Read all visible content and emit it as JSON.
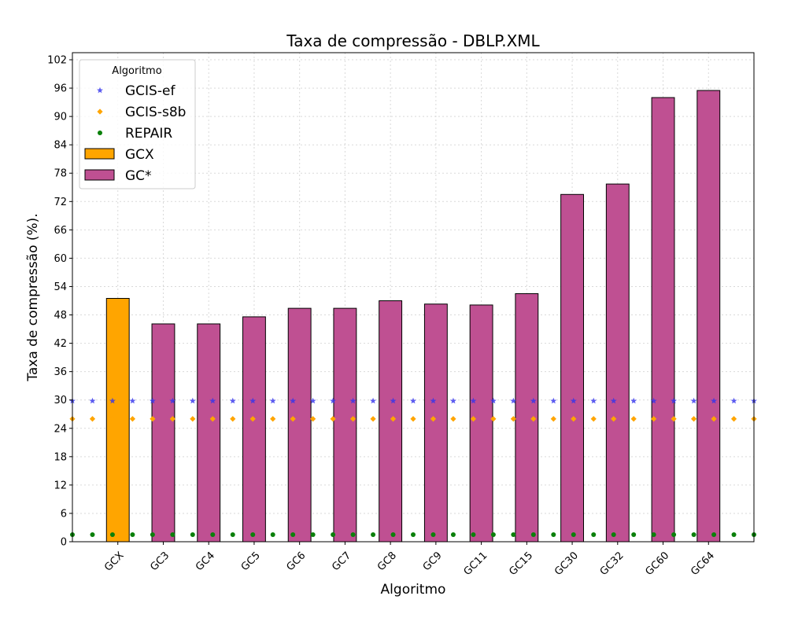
{
  "chart_data": {
    "type": "bar",
    "title": "Taxa de compressão -  DBLP.XML",
    "xlabel": "Algoritmo",
    "ylabel": "Taxa de compressão (%).",
    "ylim": [
      0,
      103.5
    ],
    "yticks": [
      0,
      6,
      12,
      18,
      24,
      30,
      36,
      42,
      48,
      54,
      60,
      66,
      72,
      78,
      84,
      90,
      96,
      102
    ],
    "grid": true,
    "categories": [
      "GCX",
      "GC3",
      "GC4",
      "GC5",
      "GC6",
      "GC7",
      "GC8",
      "GC9",
      "GC11",
      "GC15",
      "GC30",
      "GC32",
      "GC60",
      "GC64"
    ],
    "series": [
      {
        "name": "GCX",
        "kind": "bar",
        "color": "#ffa500",
        "values": [
          51.5,
          null,
          null,
          null,
          null,
          null,
          null,
          null,
          null,
          null,
          null,
          null,
          null,
          null
        ]
      },
      {
        "name": "GC*",
        "kind": "bar",
        "color": "#bf5092",
        "values": [
          null,
          46.1,
          46.1,
          47.6,
          49.4,
          49.4,
          51.0,
          50.3,
          50.1,
          52.5,
          73.5,
          75.7,
          94.0,
          95.5
        ]
      }
    ],
    "reference_lines": [
      {
        "name": "GCIS-ef",
        "value": 29.8,
        "marker": "star",
        "color": "#3333ee"
      },
      {
        "name": "GCIS-s8b",
        "value": 26.0,
        "marker": "diamond",
        "color": "#ffa500"
      },
      {
        "name": "REPAIR",
        "value": 1.5,
        "marker": "circle",
        "color": "#0a800a"
      }
    ],
    "legend": {
      "title": "Algoritmo",
      "placement": "top-left",
      "entries": [
        "GCIS-ef",
        "GCIS-s8b",
        "REPAIR",
        "GCX",
        "GC*"
      ]
    }
  }
}
